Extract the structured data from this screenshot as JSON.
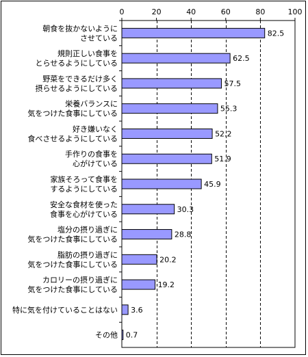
{
  "chart_data": {
    "type": "bar",
    "orientation": "horizontal",
    "categories": [
      [
        "朝食を抜かないように",
        "させている"
      ],
      [
        "規則正しい食事を",
        "とらせるようにしている"
      ],
      [
        "野菜をできるだけ多く",
        "摂らせるようにしている"
      ],
      [
        "栄養バランスに",
        "気をつけた食事にしている"
      ],
      [
        "好き嫌いなく",
        "食べさせるようにしている"
      ],
      [
        "手作りの食事を",
        "心がけている"
      ],
      [
        "家族そろって食事を",
        "するようにしている"
      ],
      [
        "安全な食材を使った",
        "食事を心がけている"
      ],
      [
        "塩分の摂り過ぎに",
        "気をつけた食事にしている"
      ],
      [
        "脂肪の摂り過ぎに",
        "気をつけた食事にしている"
      ],
      [
        "カロリーの摂り過ぎに",
        "気をつけた食事にしている"
      ],
      [
        "特に気を付けていることはない"
      ],
      [
        "その他"
      ]
    ],
    "values": [
      82.5,
      62.5,
      57.5,
      55.3,
      52.2,
      51.9,
      45.9,
      30.3,
      28.8,
      20.2,
      19.2,
      3.6,
      0.7
    ],
    "value_labels": [
      "82.5",
      "62.5",
      "57.5",
      "55.3",
      "52.2",
      "51.9",
      "45.9",
      "30.3",
      "28.8",
      "20.2",
      "19.2",
      "3.6",
      "0.7"
    ],
    "xlim": [
      0,
      100
    ],
    "xticks": [
      0,
      20,
      40,
      60,
      80,
      100
    ],
    "xtick_labels": [
      "0",
      "20",
      "40",
      "60",
      "80",
      "100"
    ],
    "grid": "vertical-dashed",
    "colors": {
      "bar_fill": "#9999ff",
      "bar_stroke": "#000000",
      "grid": "#000000",
      "frame": "#000000"
    },
    "title": "",
    "xlabel": "",
    "ylabel": ""
  }
}
